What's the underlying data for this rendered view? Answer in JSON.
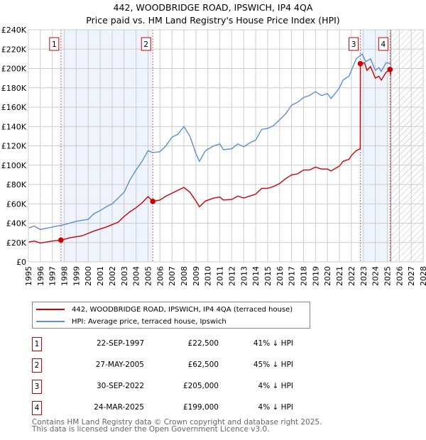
{
  "chart_data": {
    "type": "line",
    "title": "442, WOODBRIDGE ROAD, IPSWICH, IP4 4QA",
    "subtitle": "Price paid vs. HM Land Registry's House Price Index (HPI)",
    "xlim": [
      1995,
      2028
    ],
    "ylim": [
      0,
      240000
    ],
    "ytick_labels": [
      "£0",
      "£20K",
      "£40K",
      "£60K",
      "£80K",
      "£100K",
      "£120K",
      "£140K",
      "£160K",
      "£180K",
      "£200K",
      "£220K",
      "£240K"
    ],
    "xtick_labels": [
      "1995",
      "1996",
      "1997",
      "1998",
      "1999",
      "2000",
      "2001",
      "2002",
      "2003",
      "2004",
      "2005",
      "2006",
      "2007",
      "2008",
      "2009",
      "2010",
      "2011",
      "2012",
      "2013",
      "2014",
      "2015",
      "2016",
      "2017",
      "2018",
      "2019",
      "2020",
      "2021",
      "2022",
      "2023",
      "2024",
      "2025",
      "2026",
      "2027",
      "2028"
    ],
    "grid": true,
    "series": [
      {
        "name": "442, WOODBRIDGE ROAD, IPSWICH, IP4 4QA (terraced house)",
        "color": "#cc0000",
        "points": [
          [
            1995,
            20.5
          ],
          [
            1995.5,
            21.5
          ],
          [
            1996,
            19.5
          ],
          [
            1997,
            21.5
          ],
          [
            1997.72,
            22.5
          ],
          [
            1998.5,
            25
          ],
          [
            1999.5,
            27
          ],
          [
            2000.5,
            32
          ],
          [
            2001.5,
            36
          ],
          [
            2002.5,
            41
          ],
          [
            2003,
            47
          ],
          [
            2003.5,
            52
          ],
          [
            2004,
            56
          ],
          [
            2004.5,
            61
          ],
          [
            2005,
            67.5
          ],
          [
            2005.4,
            62.5
          ],
          [
            2006,
            64
          ],
          [
            2006.5,
            68
          ],
          [
            2007,
            71
          ],
          [
            2007.5,
            74
          ],
          [
            2008,
            77
          ],
          [
            2008.5,
            72
          ],
          [
            2009,
            63
          ],
          [
            2009.3,
            57
          ],
          [
            2009.8,
            63
          ],
          [
            2010.5,
            66
          ],
          [
            2011,
            67
          ],
          [
            2011.3,
            64
          ],
          [
            2012,
            64.5
          ],
          [
            2012.5,
            68
          ],
          [
            2013,
            66
          ],
          [
            2013.5,
            68
          ],
          [
            2014,
            70
          ],
          [
            2014.5,
            76
          ],
          [
            2015,
            76
          ],
          [
            2015.5,
            78
          ],
          [
            2016,
            81
          ],
          [
            2016.5,
            86
          ],
          [
            2017,
            90
          ],
          [
            2017.5,
            91
          ],
          [
            2018,
            95
          ],
          [
            2018.5,
            95
          ],
          [
            2019,
            98
          ],
          [
            2019.5,
            96
          ],
          [
            2020,
            96
          ],
          [
            2020.3,
            94
          ],
          [
            2020.7,
            97
          ],
          [
            2021,
            99
          ],
          [
            2021.3,
            104
          ],
          [
            2021.8,
            106
          ],
          [
            2022,
            110
          ],
          [
            2022.4,
            115
          ],
          [
            2022.74,
            117
          ],
          [
            2022.75,
            205
          ],
          [
            2023.1,
            206
          ],
          [
            2023.3,
            198
          ],
          [
            2023.6,
            202
          ],
          [
            2024,
            190
          ],
          [
            2024.3,
            192
          ],
          [
            2024.5,
            188
          ],
          [
            2024.9,
            196
          ],
          [
            2025.23,
            199
          ],
          [
            2025.3,
            193
          ]
        ]
      },
      {
        "name": "HPI: Average price, terraced house, Ipswich",
        "color": "#5b8fd4",
        "points": [
          [
            1995,
            35
          ],
          [
            1995.5,
            37
          ],
          [
            1996,
            33.5
          ],
          [
            1997,
            36
          ],
          [
            1998,
            38.5
          ],
          [
            1999,
            42
          ],
          [
            2000,
            44
          ],
          [
            2000.5,
            50
          ],
          [
            2001,
            53
          ],
          [
            2001.5,
            57
          ],
          [
            2002,
            60
          ],
          [
            2002.5,
            66
          ],
          [
            2003,
            72
          ],
          [
            2003.5,
            85
          ],
          [
            2004,
            95
          ],
          [
            2004.5,
            104
          ],
          [
            2005,
            115
          ],
          [
            2005.4,
            113
          ],
          [
            2006,
            114
          ],
          [
            2006.5,
            120
          ],
          [
            2007,
            129
          ],
          [
            2007.5,
            132
          ],
          [
            2008,
            140
          ],
          [
            2008.5,
            130
          ],
          [
            2009,
            112
          ],
          [
            2009.3,
            104
          ],
          [
            2009.8,
            115
          ],
          [
            2010.5,
            120
          ],
          [
            2011,
            122
          ],
          [
            2011.3,
            116
          ],
          [
            2012,
            117
          ],
          [
            2012.5,
            122
          ],
          [
            2013,
            119
          ],
          [
            2013.5,
            123
          ],
          [
            2014,
            126
          ],
          [
            2014.5,
            137
          ],
          [
            2015,
            138
          ],
          [
            2015.5,
            141
          ],
          [
            2016,
            147
          ],
          [
            2016.5,
            153
          ],
          [
            2017,
            162
          ],
          [
            2017.5,
            165
          ],
          [
            2018,
            170
          ],
          [
            2018.5,
            172
          ],
          [
            2019,
            176
          ],
          [
            2019.5,
            172
          ],
          [
            2020,
            174
          ],
          [
            2020.3,
            169
          ],
          [
            2020.7,
            175
          ],
          [
            2021,
            180
          ],
          [
            2021.3,
            188
          ],
          [
            2021.8,
            192
          ],
          [
            2022,
            198
          ],
          [
            2022.4,
            210
          ],
          [
            2022.9,
            215
          ],
          [
            2023.2,
            207
          ],
          [
            2023.6,
            210
          ],
          [
            2024,
            198
          ],
          [
            2024.3,
            201
          ],
          [
            2024.5,
            197
          ],
          [
            2024.9,
            206
          ],
          [
            2025.3,
            205
          ]
        ]
      }
    ],
    "value_units": "thousands GBP",
    "sales": [
      {
        "n": "1",
        "x": 1997.72,
        "y": 22.5
      },
      {
        "n": "2",
        "x": 2005.4,
        "y": 62.5
      },
      {
        "n": "3",
        "x": 2022.75,
        "y": 205
      },
      {
        "n": "4",
        "x": 2025.23,
        "y": 199
      }
    ],
    "data_end": 2025.3
  },
  "legend": {
    "red": "442, WOODBRIDGE ROAD, IPSWICH, IP4 4QA (terraced house)",
    "blue": "HPI: Average price, terraced house, Ipswich"
  },
  "table": [
    {
      "n": "1",
      "date": "22-SEP-1997",
      "price": "£22,500",
      "hpi": "41% ↓ HPI"
    },
    {
      "n": "2",
      "date": "27-MAY-2005",
      "price": "£62,500",
      "hpi": "45% ↓ HPI"
    },
    {
      "n": "3",
      "date": "30-SEP-2022",
      "price": "£205,000",
      "hpi": "4% ↓ HPI"
    },
    {
      "n": "4",
      "date": "24-MAR-2025",
      "price": "£199,000",
      "hpi": "4% ↓ HPI"
    }
  ],
  "footer": {
    "line1": "Contains HM Land Registry data © Crown copyright and database right 2025.",
    "line2": "This data is licensed under the Open Government Licence v3.0."
  }
}
